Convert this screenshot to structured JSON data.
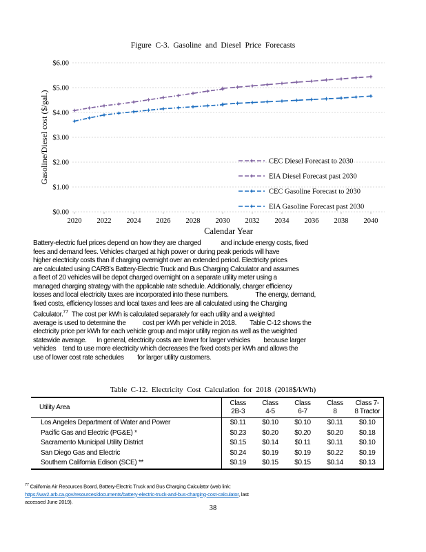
{
  "page_number": "38",
  "figure": {
    "title": "Figure  C-3.  Gasoline  and  Diesel  Price  Forecasts"
  },
  "chart_data": {
    "type": "line",
    "title": "Figure C-3. Gasoline and Diesel Price Forecasts",
    "xlabel": "Calendar Year",
    "ylabel": "Gasoline/Diesel cost ($/gal.)",
    "xlim": [
      2020,
      2040
    ],
    "ylim": [
      0,
      6
    ],
    "x_ticks": [
      2020,
      2022,
      2024,
      2026,
      2028,
      2030,
      2032,
      2034,
      2036,
      2038,
      2040
    ],
    "y_ticks": [
      0,
      1,
      2,
      3,
      4,
      5,
      6
    ],
    "y_tick_prefix": "$",
    "grid": "horizontal-dashed",
    "gridline_color": "#d9d9d9",
    "legend_position": "inside-right-bottom",
    "series": [
      {
        "name": "CEC Diesel Forecast to 2030",
        "color": "#8064A2",
        "dash": "dash-dot",
        "x": [
          2020,
          2021,
          2022,
          2023,
          2024,
          2025,
          2026,
          2027,
          2028,
          2029,
          2030
        ],
        "values": [
          4.08,
          4.18,
          4.27,
          4.34,
          4.42,
          4.51,
          4.6,
          4.68,
          4.77,
          4.86,
          4.94
        ]
      },
      {
        "name": "EIA Diesel Forecast past 2030",
        "color": "#8064A2",
        "dash": "dash",
        "x": [
          2030,
          2031,
          2032,
          2033,
          2034,
          2035,
          2036,
          2037,
          2038,
          2039,
          2040
        ],
        "values": [
          4.97,
          5.02,
          5.07,
          5.12,
          5.17,
          5.22,
          5.26,
          5.31,
          5.35,
          5.4,
          5.44
        ]
      },
      {
        "name": "CEC Gasoline Forecast to 2030",
        "color": "#1F6FC0",
        "dash": "dash-dot",
        "x": [
          2020,
          2021,
          2022,
          2023,
          2024,
          2025,
          2026,
          2027,
          2028,
          2029,
          2030
        ],
        "values": [
          3.65,
          3.78,
          3.9,
          3.97,
          4.03,
          4.09,
          4.15,
          4.19,
          4.23,
          4.27,
          4.31
        ]
      },
      {
        "name": "EIA Gasoline Forecast past 2030",
        "color": "#1F6FC0",
        "dash": "dash",
        "x": [
          2030,
          2031,
          2032,
          2033,
          2034,
          2035,
          2036,
          2037,
          2038,
          2039,
          2040
        ],
        "values": [
          4.33,
          4.37,
          4.4,
          4.43,
          4.46,
          4.49,
          4.52,
          4.55,
          4.58,
          4.62,
          4.66
        ]
      }
    ]
  },
  "paragraph": {
    "part1": "Battery-electric fuel prices depend on how they are charged            and include energy costs, fixed\nfees and demand fees. Vehicles charged at high power or during peak periods will have\nhigher electricity costs than if charging overnight over an extended period. Electricity prices\nare calculated using CARB's Battery-Electric Truck and Bus Charging Calculator and assumes\na fleet of 20 vehicles will be depot charged overnight on a separate utility meter using a\nmanaged charging strategy with the applicable rate schedule. Additionally, charger efficiency\nlosses and local electricity taxes are incorporated into these numbers.                The energy, demand,\nfixed costs, efficiency losses and local taxes and fees are all calculated using the Charging\nCalculator.",
    "footnote_ref": "77",
    "part2": "  The cost per kWh is calculated separately for each utility and a weighted\naverage is used to determine the          cost per kWh per vehicle in 2018.        Table C-12 shows the\nelectricity price per kWh for each vehicle group and major utility region as well as the weighted\nstatewide average.      In general, electricity costs are lower for larger vehicles        because larger\nvehicles    tend to use more electricity which decreases the fixed costs per kWh and allows the\nuse of lower cost rate schedules        for larger utility customers."
  },
  "table": {
    "title": "Table  C-12.  Electricity  Cost  Calculation  for  2018  (2018$/kWh)",
    "col1_header": "Utility    Area",
    "class_headers": [
      "Class\n2B-3",
      "Class\n4-5",
      "Class\n6-7",
      "Class\n8",
      "Class 7-\n8 Tractor"
    ],
    "rows": [
      {
        "utility": "Los Angeles Department of Water and Power",
        "values": [
          "$0.11",
          "$0.10",
          "$0.10",
          "$0.11",
          "$0.10"
        ]
      },
      {
        "utility": "Pacific Gas and Electric            (PG&E)   *",
        "values": [
          "$0.23",
          "$0.20",
          "$0.20",
          "$0.20",
          "$0.18"
        ]
      },
      {
        "utility": "Sacramento Municipal Utility District",
        "values": [
          "$0.15",
          "$0.14",
          "$0.11",
          "$0.11",
          "$0.10"
        ]
      },
      {
        "utility": "San Diego Gas and Electric",
        "values": [
          "$0.24",
          "$0.19",
          "$0.19",
          "$0.22",
          "$0.19"
        ]
      },
      {
        "utility": "Southern California Edison            (SCE)   **",
        "values": [
          "$0.19",
          "$0.15",
          "$0.15",
          "$0.14",
          "$0.13"
        ]
      }
    ]
  },
  "footnote": {
    "ref": "77",
    "text_before_link": " California Air Resources Board, Battery-Electric Truck and Bus Charging Calculator (web link:\n",
    "link": "https://ww2.arb.ca.gov/resources/documents/battery-electric-truck-and-bus-charging-cost-calculator",
    "text_after_link": ", last\naccessed June 2019)."
  }
}
